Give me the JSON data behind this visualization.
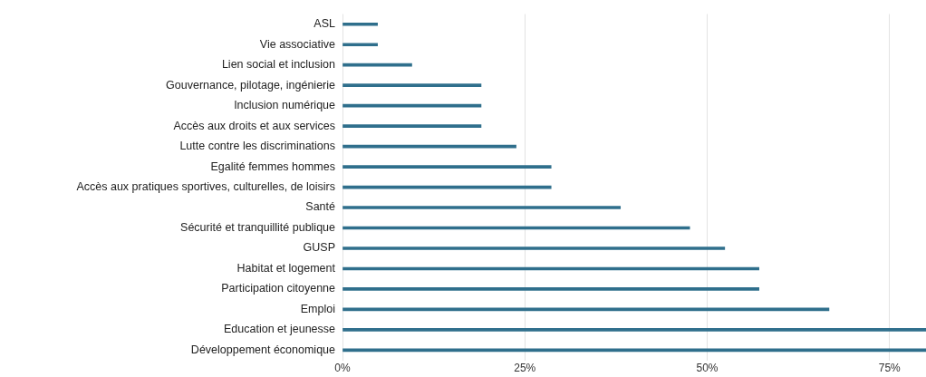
{
  "chart_data": {
    "type": "bar",
    "orientation": "horizontal",
    "categories": [
      "ASL",
      "Vie associative",
      "Lien social et inclusion",
      "Gouvernance, pilotage, ingénierie",
      "Inclusion numérique",
      "Accès aux droits et aux services",
      "Lutte contre les discriminations",
      "Egalité femmes hommes",
      "Accès aux pratiques sportives, culturelles, de loisirs",
      "Santé",
      "Sécurité et tranquillité publique",
      "GUSP",
      "Habitat et logement",
      "Participation citoyenne",
      "Emploi",
      "Education et jeunesse",
      "Développement économique"
    ],
    "values": [
      4.8,
      4.8,
      9.5,
      19,
      19,
      19,
      23.8,
      28.6,
      28.6,
      38.1,
      47.6,
      52.4,
      57.1,
      57.1,
      66.7,
      80,
      80
    ],
    "color": "#2f6f8c",
    "xlim": [
      0,
      80
    ],
    "xticks": [
      {
        "value": 0,
        "label": "0%"
      },
      {
        "value": 25,
        "label": "25%"
      },
      {
        "value": 50,
        "label": "50%"
      },
      {
        "value": 75,
        "label": "75%"
      }
    ],
    "grid": "x",
    "legend": false
  }
}
